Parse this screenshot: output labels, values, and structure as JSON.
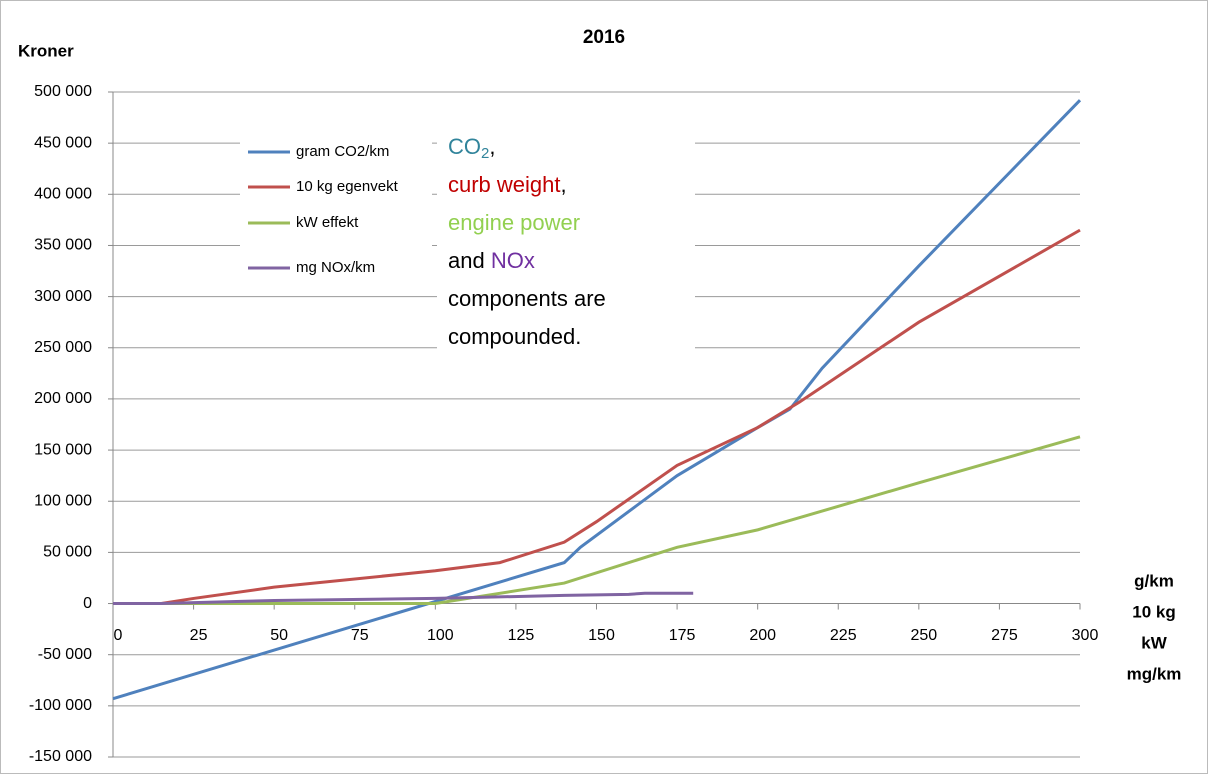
{
  "chart_data": {
    "type": "line",
    "title": "2016",
    "y_label": "Kroner",
    "x_label_lines": [
      "g/km",
      "10 kg",
      "kW",
      "mg/km"
    ],
    "xlim": [
      0,
      300
    ],
    "xticks": [
      0,
      25,
      50,
      75,
      100,
      125,
      150,
      175,
      200,
      225,
      250,
      275,
      300
    ],
    "ylim": [
      -150000,
      500000
    ],
    "yticks": [
      {
        "value": -150000,
        "label": "-150 000"
      },
      {
        "value": -100000,
        "label": "-100 000"
      },
      {
        "value": -50000,
        "label": "-50 000"
      },
      0,
      {
        "value": 50000,
        "label": "50 000"
      },
      {
        "value": 100000,
        "label": "100 000"
      },
      {
        "value": 150000,
        "label": "150 000"
      },
      {
        "value": 200000,
        "label": "200 000"
      },
      {
        "value": 250000,
        "label": "250 000"
      },
      {
        "value": 300000,
        "label": "300 000"
      },
      {
        "value": 350000,
        "label": "350 000"
      },
      {
        "value": 400000,
        "label": "400 000"
      },
      {
        "value": 450000,
        "label": "450 000"
      },
      {
        "value": 500000,
        "label": "500 000"
      }
    ],
    "grid": true,
    "series": [
      {
        "name": "gram CO2/km",
        "color": "#4f81bd",
        "x": [
          0,
          140,
          145,
          175,
          200,
          210,
          220,
          250,
          300
        ],
        "values": [
          -93000,
          40000,
          55000,
          125000,
          172000,
          190000,
          230000,
          330000,
          492000
        ]
      },
      {
        "name": "10 kg egenvekt",
        "color": "#c0504d",
        "x": [
          15,
          25,
          50,
          100,
          120,
          140,
          150,
          175,
          200,
          213,
          250,
          300
        ],
        "values": [
          0,
          5000,
          16000,
          32000,
          40000,
          60000,
          80000,
          135000,
          172000,
          197000,
          275000,
          365000
        ]
      },
      {
        "name": "kW effekt",
        "color": "#9bbb59",
        "x": [
          0,
          100,
          140,
          175,
          200,
          250,
          300
        ],
        "values": [
          0,
          0,
          20000,
          55000,
          72000,
          118000,
          163000
        ]
      },
      {
        "name": "mg NOx/km",
        "color": "#8064a2",
        "x": [
          0,
          15,
          50,
          100,
          140,
          160,
          165,
          180
        ],
        "values": [
          0,
          0,
          3000,
          5000,
          8000,
          9000,
          10000,
          10000
        ]
      }
    ],
    "annotation": {
      "lines": [
        [
          {
            "text": "CO",
            "color": "#31849b"
          },
          {
            "text": "2",
            "color": "#31849b",
            "sub": true
          },
          {
            "text": ",",
            "color": "#000000"
          }
        ],
        [
          {
            "text": "curb weight",
            "color": "#c00000"
          },
          {
            "text": ",",
            "color": "#000000"
          }
        ],
        [
          {
            "text": "engine power",
            "color": "#92d050"
          }
        ],
        [
          {
            "text": "and ",
            "color": "#000000"
          },
          {
            "text": "NOx",
            "color": "#7030a0"
          }
        ],
        [
          {
            "text": "components are",
            "color": "#000000"
          }
        ],
        [
          {
            "text": "compounded.",
            "color": "#000000"
          }
        ]
      ]
    }
  }
}
